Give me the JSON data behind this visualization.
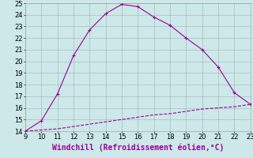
{
  "xlabel": "Windchill (Refroidissement éolien,°C)",
  "xlim": [
    9,
    23
  ],
  "ylim": [
    14,
    25
  ],
  "xticks": [
    9,
    10,
    11,
    12,
    13,
    14,
    15,
    16,
    17,
    18,
    19,
    20,
    21,
    22,
    23
  ],
  "yticks": [
    14,
    15,
    16,
    17,
    18,
    19,
    20,
    21,
    22,
    23,
    24,
    25
  ],
  "curve1_x": [
    9,
    10,
    11,
    12,
    13,
    14,
    15,
    16,
    17,
    18,
    19,
    20,
    21,
    22,
    23
  ],
  "curve1_y": [
    14.0,
    14.9,
    17.2,
    20.5,
    22.7,
    24.1,
    24.9,
    24.7,
    23.8,
    23.1,
    22.0,
    21.0,
    19.5,
    17.3,
    16.3
  ],
  "curve2_x": [
    9,
    10,
    11,
    12,
    13,
    14,
    15,
    16,
    17,
    18,
    19,
    20,
    21,
    22,
    23
  ],
  "curve2_y": [
    14.0,
    14.1,
    14.2,
    14.4,
    14.6,
    14.8,
    15.0,
    15.2,
    15.4,
    15.5,
    15.7,
    15.9,
    16.0,
    16.1,
    16.3
  ],
  "line_color": "#990099",
  "bg_color": "#cce8e8",
  "grid_color": "#999999",
  "xlabel_color": "#990099",
  "xlabel_fontsize": 7,
  "tick_fontsize": 6,
  "marker_size": 3
}
